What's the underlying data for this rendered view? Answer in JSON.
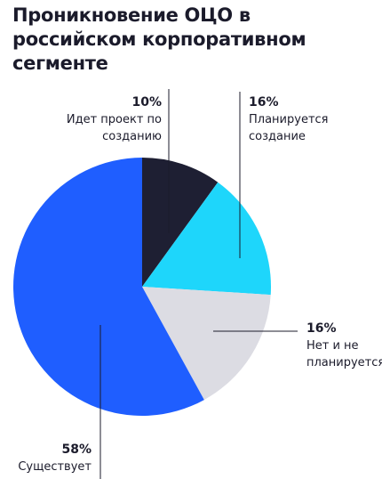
{
  "chart_data": {
    "type": "pie",
    "title": "Проникновение ОЦО в российском корпоративном сегменте",
    "categories": [
      "Идет проект по созданию",
      "Планируется создание",
      "Нет и не планируется",
      "Существует"
    ],
    "values": [
      10,
      16,
      16,
      58
    ],
    "value_labels": [
      "10%",
      "16%",
      "16%",
      "58%"
    ],
    "colors": [
      "#1e1f33",
      "#1ed6fb",
      "#dcdce3",
      "#1f5eff"
    ]
  }
}
